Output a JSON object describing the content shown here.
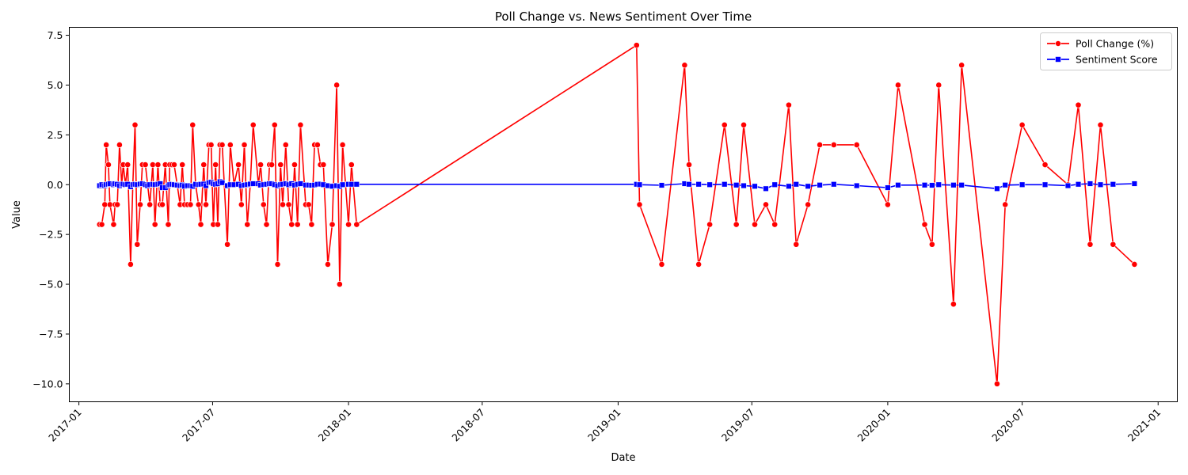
{
  "chart_data": {
    "type": "line",
    "title": "Poll Change vs. News Sentiment Over Time",
    "xlabel": "Date",
    "ylabel": "Value",
    "ylim": [
      -10.9,
      7.9
    ],
    "xlim": [
      "2016-12-19",
      "2021-01-27"
    ],
    "y_ticks": [
      -10.0,
      -7.5,
      -5.0,
      -2.5,
      0.0,
      2.5,
      5.0,
      7.5
    ],
    "y_tick_labels": [
      "−10.0",
      "−7.5",
      "−5.0",
      "−2.5",
      "0.0",
      "2.5",
      "5.0",
      "7.5"
    ],
    "x_ticks": [
      "2017-01-01",
      "2017-07-01",
      "2018-01-01",
      "2018-07-01",
      "2019-01-01",
      "2019-07-01",
      "2020-01-01",
      "2020-07-01",
      "2021-01-01"
    ],
    "x_tick_labels": [
      "2017-01",
      "2017-07",
      "2018-01",
      "2018-07",
      "2019-01",
      "2019-07",
      "2020-01",
      "2020-07",
      "2021-01"
    ],
    "grid": false,
    "legend_position": "top-right",
    "series": [
      {
        "name": "Poll Change (%)",
        "color": "#ff0000",
        "marker": "circle",
        "points": [
          [
            "2017-01-29",
            -2
          ],
          [
            "2017-02-01",
            -2
          ],
          [
            "2017-02-05",
            -1
          ],
          [
            "2017-02-07",
            2
          ],
          [
            "2017-02-10",
            1
          ],
          [
            "2017-02-12",
            -1
          ],
          [
            "2017-02-17",
            -2
          ],
          [
            "2017-02-19",
            -1
          ],
          [
            "2017-02-22",
            -1
          ],
          [
            "2017-02-25",
            2
          ],
          [
            "2017-02-28",
            0
          ],
          [
            "2017-03-02",
            1
          ],
          [
            "2017-03-05",
            0
          ],
          [
            "2017-03-08",
            1
          ],
          [
            "2017-03-12",
            -4
          ],
          [
            "2017-03-15",
            0
          ],
          [
            "2017-03-18",
            3
          ],
          [
            "2017-03-21",
            -3
          ],
          [
            "2017-03-25",
            -1
          ],
          [
            "2017-03-28",
            1
          ],
          [
            "2017-04-01",
            1
          ],
          [
            "2017-04-04",
            0
          ],
          [
            "2017-04-07",
            -1
          ],
          [
            "2017-04-11",
            1
          ],
          [
            "2017-04-14",
            -2
          ],
          [
            "2017-04-18",
            1
          ],
          [
            "2017-04-21",
            -1
          ],
          [
            "2017-04-24",
            -1
          ],
          [
            "2017-04-28",
            1
          ],
          [
            "2017-05-02",
            -2
          ],
          [
            "2017-05-04",
            1
          ],
          [
            "2017-05-07",
            1
          ],
          [
            "2017-05-10",
            1
          ],
          [
            "2017-05-14",
            0
          ],
          [
            "2017-05-18",
            -1
          ],
          [
            "2017-05-21",
            1
          ],
          [
            "2017-05-24",
            -1
          ],
          [
            "2017-05-28",
            -1
          ],
          [
            "2017-06-01",
            -1
          ],
          [
            "2017-06-04",
            3
          ],
          [
            "2017-06-08",
            0
          ],
          [
            "2017-06-12",
            -1
          ],
          [
            "2017-06-15",
            -2
          ],
          [
            "2017-06-19",
            1
          ],
          [
            "2017-06-22",
            -1
          ],
          [
            "2017-06-26",
            2
          ],
          [
            "2017-06-29",
            2
          ],
          [
            "2017-07-02",
            -2
          ],
          [
            "2017-07-05",
            1
          ],
          [
            "2017-07-08",
            -2
          ],
          [
            "2017-07-11",
            2
          ],
          [
            "2017-07-14",
            2
          ],
          [
            "2017-07-21",
            -3
          ],
          [
            "2017-07-25",
            2
          ],
          [
            "2017-07-30",
            0
          ],
          [
            "2017-08-05",
            1
          ],
          [
            "2017-08-09",
            -1
          ],
          [
            "2017-08-13",
            2
          ],
          [
            "2017-08-17",
            -2
          ],
          [
            "2017-08-21",
            0
          ],
          [
            "2017-08-25",
            3
          ],
          [
            "2017-09-01",
            0
          ],
          [
            "2017-09-04",
            1
          ],
          [
            "2017-09-08",
            -1
          ],
          [
            "2017-09-12",
            -2
          ],
          [
            "2017-09-16",
            1
          ],
          [
            "2017-09-19",
            1
          ],
          [
            "2017-09-23",
            3
          ],
          [
            "2017-09-27",
            -4
          ],
          [
            "2017-10-01",
            1
          ],
          [
            "2017-10-04",
            -1
          ],
          [
            "2017-10-08",
            2
          ],
          [
            "2017-10-12",
            -1
          ],
          [
            "2017-10-16",
            -2
          ],
          [
            "2017-10-20",
            1
          ],
          [
            "2017-10-24",
            -2
          ],
          [
            "2017-10-28",
            3
          ],
          [
            "2017-11-04",
            -1
          ],
          [
            "2017-11-08",
            -1
          ],
          [
            "2017-11-12",
            -2
          ],
          [
            "2017-11-16",
            2
          ],
          [
            "2017-11-20",
            2
          ],
          [
            "2017-11-24",
            1
          ],
          [
            "2017-11-28",
            1
          ],
          [
            "2017-12-04",
            -4
          ],
          [
            "2017-12-10",
            -2
          ],
          [
            "2017-12-16",
            5
          ],
          [
            "2017-12-20",
            -5
          ],
          [
            "2017-12-24",
            2
          ],
          [
            "2018-01-01",
            -2
          ],
          [
            "2018-01-05",
            1
          ],
          [
            "2018-01-12",
            -2
          ],
          [
            "2019-01-26",
            7
          ],
          [
            "2019-01-30",
            -1
          ],
          [
            "2019-03-01",
            -4
          ],
          [
            "2019-04-01",
            6
          ],
          [
            "2019-04-07",
            1
          ],
          [
            "2019-04-20",
            -4
          ],
          [
            "2019-05-05",
            -2
          ],
          [
            "2019-05-25",
            3
          ],
          [
            "2019-06-10",
            -2
          ],
          [
            "2019-06-20",
            3
          ],
          [
            "2019-07-05",
            -2
          ],
          [
            "2019-07-20",
            -1
          ],
          [
            "2019-08-01",
            -2
          ],
          [
            "2019-08-20",
            4
          ],
          [
            "2019-08-30",
            -3
          ],
          [
            "2019-09-15",
            -1
          ],
          [
            "2019-10-01",
            2
          ],
          [
            "2019-10-20",
            2
          ],
          [
            "2019-11-20",
            2
          ],
          [
            "2020-01-01",
            -1
          ],
          [
            "2020-01-15",
            5
          ],
          [
            "2020-02-20",
            -2
          ],
          [
            "2020-03-01",
            -3
          ],
          [
            "2020-03-10",
            5
          ],
          [
            "2020-03-30",
            -6
          ],
          [
            "2020-04-10",
            6
          ],
          [
            "2020-05-28",
            -10
          ],
          [
            "2020-06-08",
            -1
          ],
          [
            "2020-07-01",
            3
          ],
          [
            "2020-08-01",
            1
          ],
          [
            "2020-09-01",
            0
          ],
          [
            "2020-09-15",
            4
          ],
          [
            "2020-10-01",
            -3
          ],
          [
            "2020-10-15",
            3
          ],
          [
            "2020-11-01",
            -3
          ],
          [
            "2020-11-30",
            -4
          ]
        ]
      },
      {
        "name": "Sentiment Score",
        "color": "#0000ff",
        "marker": "square",
        "points": [
          [
            "2017-01-29",
            -0.05
          ],
          [
            "2017-02-01",
            0.0
          ],
          [
            "2017-02-05",
            -0.05
          ],
          [
            "2017-02-07",
            0.0
          ],
          [
            "2017-02-10",
            0.02
          ],
          [
            "2017-02-12",
            0.05
          ],
          [
            "2017-02-17",
            0.0
          ],
          [
            "2017-02-19",
            0.05
          ],
          [
            "2017-02-22",
            0.02
          ],
          [
            "2017-02-25",
            -0.05
          ],
          [
            "2017-02-28",
            0.02
          ],
          [
            "2017-03-02",
            0.03
          ],
          [
            "2017-03-05",
            0.0
          ],
          [
            "2017-03-08",
            0.02
          ],
          [
            "2017-03-12",
            -0.1
          ],
          [
            "2017-03-15",
            0.0
          ],
          [
            "2017-03-18",
            0.02
          ],
          [
            "2017-03-21",
            0.0
          ],
          [
            "2017-03-25",
            0.03
          ],
          [
            "2017-03-28",
            0.05
          ],
          [
            "2017-04-01",
            0.0
          ],
          [
            "2017-04-04",
            -0.05
          ],
          [
            "2017-04-07",
            0.0
          ],
          [
            "2017-04-11",
            0.02
          ],
          [
            "2017-04-14",
            0.0
          ],
          [
            "2017-04-18",
            0.02
          ],
          [
            "2017-04-21",
            0.05
          ],
          [
            "2017-04-24",
            -0.15
          ],
          [
            "2017-04-28",
            -0.15
          ],
          [
            "2017-05-02",
            -0.05
          ],
          [
            "2017-05-04",
            0.0
          ],
          [
            "2017-05-07",
            0.02
          ],
          [
            "2017-05-10",
            0.0
          ],
          [
            "2017-05-14",
            -0.02
          ],
          [
            "2017-05-18",
            -0.05
          ],
          [
            "2017-05-21",
            -0.02
          ],
          [
            "2017-05-24",
            -0.08
          ],
          [
            "2017-05-28",
            -0.05
          ],
          [
            "2017-06-01",
            -0.05
          ],
          [
            "2017-06-04",
            -0.08
          ],
          [
            "2017-06-08",
            0.02
          ],
          [
            "2017-06-12",
            0.0
          ],
          [
            "2017-06-15",
            0.02
          ],
          [
            "2017-06-19",
            0.03
          ],
          [
            "2017-06-22",
            -0.05
          ],
          [
            "2017-06-26",
            0.1
          ],
          [
            "2017-06-29",
            0.12
          ],
          [
            "2017-07-02",
            0.05
          ],
          [
            "2017-07-05",
            0.02
          ],
          [
            "2017-07-08",
            0.05
          ],
          [
            "2017-07-11",
            0.15
          ],
          [
            "2017-07-14",
            0.1
          ],
          [
            "2017-07-21",
            -0.05
          ],
          [
            "2017-07-25",
            0.0
          ],
          [
            "2017-07-30",
            0.0
          ],
          [
            "2017-08-05",
            0.02
          ],
          [
            "2017-08-09",
            -0.05
          ],
          [
            "2017-08-13",
            -0.02
          ],
          [
            "2017-08-17",
            0.0
          ],
          [
            "2017-08-21",
            0.03
          ],
          [
            "2017-08-25",
            0.05
          ],
          [
            "2017-09-01",
            0.05
          ],
          [
            "2017-09-04",
            -0.02
          ],
          [
            "2017-09-08",
            0.0
          ],
          [
            "2017-09-12",
            0.02
          ],
          [
            "2017-09-16",
            0.05
          ],
          [
            "2017-09-19",
            0.05
          ],
          [
            "2017-09-23",
            0.0
          ],
          [
            "2017-09-27",
            -0.05
          ],
          [
            "2017-10-01",
            0.0
          ],
          [
            "2017-10-04",
            0.02
          ],
          [
            "2017-10-08",
            0.05
          ],
          [
            "2017-10-12",
            0.0
          ],
          [
            "2017-10-16",
            0.05
          ],
          [
            "2017-10-20",
            -0.02
          ],
          [
            "2017-10-24",
            0.02
          ],
          [
            "2017-10-28",
            0.05
          ],
          [
            "2017-11-04",
            -0.02
          ],
          [
            "2017-11-08",
            -0.02
          ],
          [
            "2017-11-12",
            -0.03
          ],
          [
            "2017-11-16",
            -0.02
          ],
          [
            "2017-11-20",
            0.02
          ],
          [
            "2017-11-24",
            0.03
          ],
          [
            "2017-11-28",
            0.0
          ],
          [
            "2017-12-04",
            -0.05
          ],
          [
            "2017-12-10",
            -0.08
          ],
          [
            "2017-12-16",
            -0.05
          ],
          [
            "2017-12-20",
            -0.08
          ],
          [
            "2017-12-24",
            0.0
          ],
          [
            "2018-01-01",
            0.02
          ],
          [
            "2018-01-05",
            0.02
          ],
          [
            "2018-01-12",
            0.02
          ],
          [
            "2019-01-26",
            0.02
          ],
          [
            "2019-01-30",
            0.0
          ],
          [
            "2019-03-01",
            -0.03
          ],
          [
            "2019-04-01",
            0.05
          ],
          [
            "2019-04-07",
            0.02
          ],
          [
            "2019-04-20",
            0.02
          ],
          [
            "2019-05-05",
            0.0
          ],
          [
            "2019-05-25",
            0.02
          ],
          [
            "2019-06-10",
            -0.02
          ],
          [
            "2019-06-20",
            -0.05
          ],
          [
            "2019-07-05",
            -0.08
          ],
          [
            "2019-07-20",
            -0.2
          ],
          [
            "2019-08-01",
            0.0
          ],
          [
            "2019-08-20",
            -0.08
          ],
          [
            "2019-08-30",
            0.02
          ],
          [
            "2019-09-15",
            -0.08
          ],
          [
            "2019-10-01",
            -0.02
          ],
          [
            "2019-10-20",
            0.02
          ],
          [
            "2019-11-20",
            -0.05
          ],
          [
            "2020-01-01",
            -0.15
          ],
          [
            "2020-01-15",
            -0.02
          ],
          [
            "2020-02-20",
            -0.02
          ],
          [
            "2020-03-01",
            -0.03
          ],
          [
            "2020-03-10",
            0.0
          ],
          [
            "2020-03-30",
            -0.02
          ],
          [
            "2020-04-10",
            -0.02
          ],
          [
            "2020-05-28",
            -0.2
          ],
          [
            "2020-06-08",
            -0.02
          ],
          [
            "2020-07-01",
            0.0
          ],
          [
            "2020-08-01",
            0.0
          ],
          [
            "2020-09-01",
            -0.05
          ],
          [
            "2020-09-15",
            0.02
          ],
          [
            "2020-10-01",
            0.05
          ],
          [
            "2020-10-15",
            0.0
          ],
          [
            "2020-11-01",
            0.02
          ],
          [
            "2020-11-30",
            0.05
          ]
        ]
      }
    ]
  }
}
